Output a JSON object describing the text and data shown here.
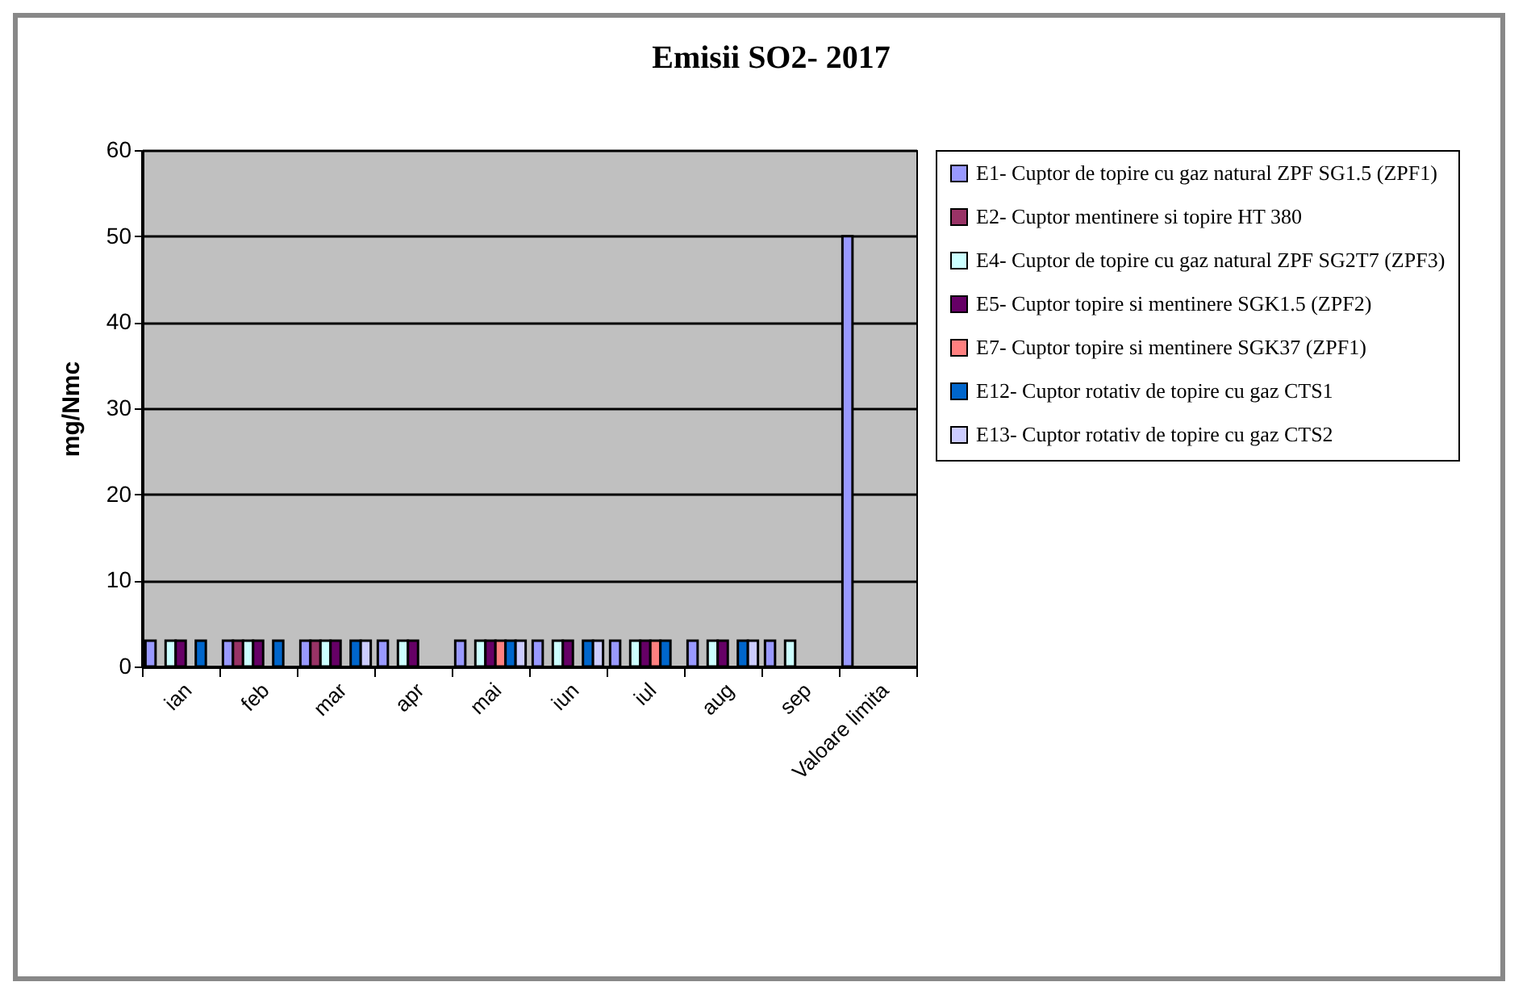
{
  "chart_data": {
    "type": "bar",
    "title": "Emisii SO2- 2017",
    "ylabel": "mg/Nmc",
    "categories": [
      "ian",
      "feb",
      "mar",
      "apr",
      "mai",
      "iun",
      "iul",
      "aug",
      "sep",
      "Valoare limita"
    ],
    "series": [
      {
        "name": "E1- Cuptor de topire cu gaz natural ZPF SG1.5 (ZPF1)",
        "color": "#9999ff",
        "values": [
          3,
          3,
          3,
          3,
          3,
          3,
          3,
          3,
          3,
          50
        ]
      },
      {
        "name": "E2- Cuptor mentinere si topire HT 380",
        "color": "#993366",
        "values": [
          null,
          3,
          3,
          null,
          null,
          null,
          null,
          null,
          null,
          null
        ]
      },
      {
        "name": "E4- Cuptor de topire cu gaz natural ZPF SG2T7 (ZPF3)",
        "color": "#ccffff",
        "values": [
          3,
          3,
          3,
          3,
          3,
          3,
          3,
          3,
          3,
          null
        ]
      },
      {
        "name": "E5- Cuptor topire si mentinere SGK1.5 (ZPF2)",
        "color": "#660066",
        "values": [
          3,
          3,
          3,
          3,
          3,
          3,
          3,
          3,
          null,
          null
        ]
      },
      {
        "name": "E7- Cuptor topire si mentinere SGK37 (ZPF1)",
        "color": "#ff8080",
        "values": [
          null,
          null,
          null,
          null,
          3,
          null,
          3,
          null,
          null,
          null
        ]
      },
      {
        "name": "E12- Cuptor rotativ de topire cu gaz CTS1",
        "color": "#0066cc",
        "values": [
          3,
          3,
          3,
          null,
          3,
          3,
          3,
          3,
          null,
          null
        ]
      },
      {
        "name": "E13- Cuptor rotativ de topire cu gaz CTS2",
        "color": "#ccccff",
        "values": [
          null,
          null,
          3,
          null,
          3,
          3,
          null,
          3,
          null,
          null
        ]
      }
    ],
    "ylim": [
      0,
      60
    ],
    "yticks": [
      0,
      10,
      20,
      30,
      40,
      50,
      60
    ],
    "grid": "y",
    "legend": "right"
  }
}
